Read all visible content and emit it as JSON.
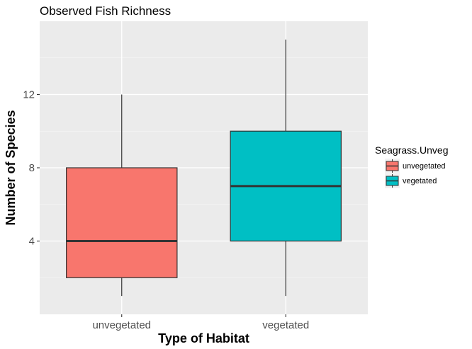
{
  "chart_data": {
    "type": "boxplot",
    "title": "Observed Fish Richness",
    "xlabel": "Type of Habitat",
    "ylabel": "Number of Species",
    "categories": [
      "unvegetated",
      "vegetated"
    ],
    "ylim": [
      0,
      16
    ],
    "yticks": [
      4,
      8,
      12
    ],
    "grid": true,
    "legend": {
      "title": "Seagrass.Unveg",
      "placement": "right",
      "entries": [
        "unvegetated",
        "vegetated"
      ]
    },
    "series": [
      {
        "category": "unvegetated",
        "min": 1,
        "q1": 2,
        "median": 4,
        "q3": 8,
        "max": 12,
        "color": "#F8766D"
      },
      {
        "category": "vegetated",
        "min": 1,
        "q1": 4,
        "median": 7,
        "q3": 10,
        "max": 15,
        "color": "#00BFC4"
      }
    ]
  },
  "colors": {
    "panel": "#EBEBEB",
    "grid_major": "#FFFFFF",
    "box_outline": "#333333"
  }
}
